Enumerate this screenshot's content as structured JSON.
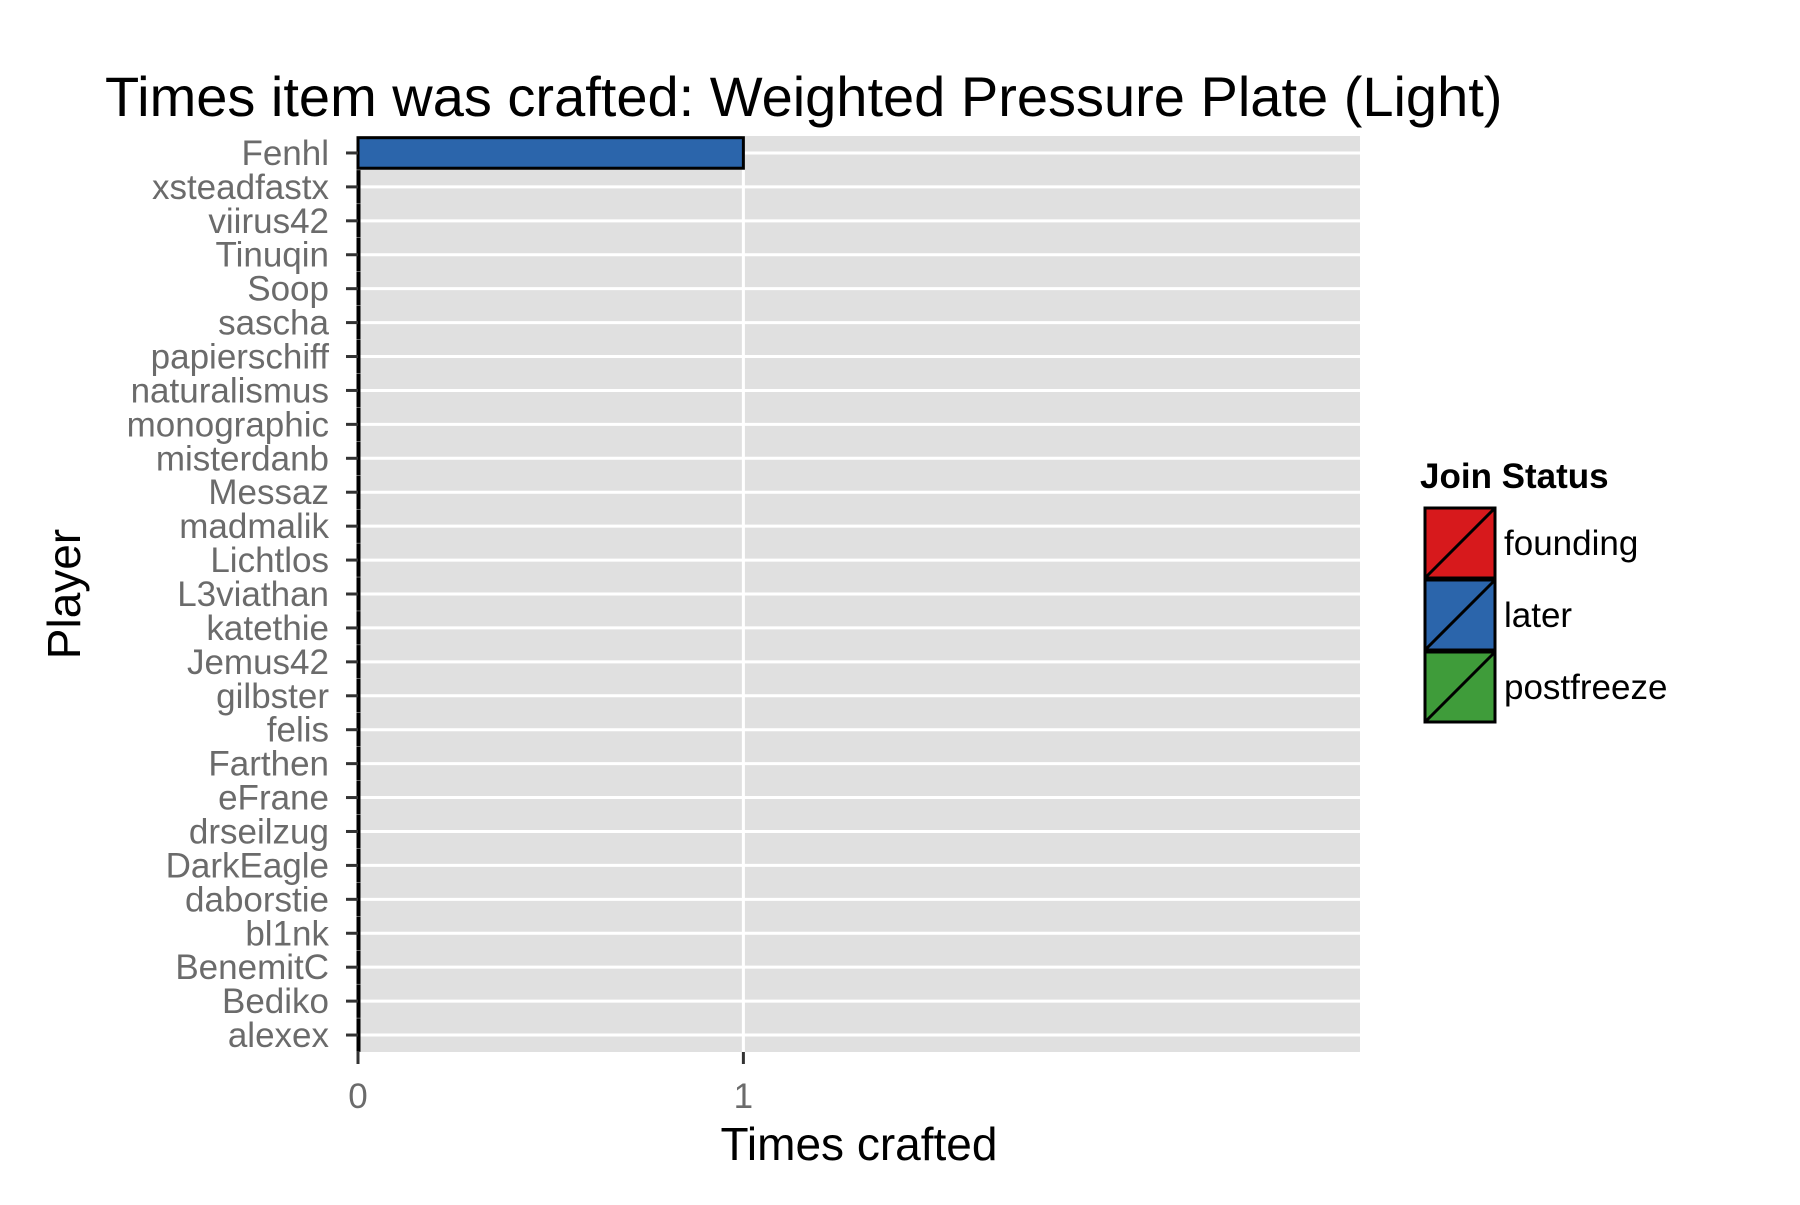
{
  "chart_data": {
    "type": "bar",
    "orientation": "horizontal",
    "title": "Times item was crafted: Weighted Pressure Plate (Light)",
    "xlabel": "Times crafted",
    "ylabel": "Player",
    "xlim": [
      0,
      2.6
    ],
    "x_ticks": [
      0,
      1
    ],
    "grid": true,
    "legend": {
      "title": "Join Status",
      "position": "right",
      "entries": [
        {
          "label": "founding",
          "color": "#d7191c"
        },
        {
          "label": "later",
          "color": "#2b65ab"
        },
        {
          "label": "postfreeze",
          "color": "#3f9c3a"
        }
      ]
    },
    "categories": [
      "Fenhl",
      "xsteadfastx",
      "viirus42",
      "Tinuqin",
      "Soop",
      "sascha",
      "papierschiff",
      "naturalismus",
      "monographic",
      "misterdanb",
      "Messaz",
      "madmalik",
      "Lichtlos",
      "L3viathan",
      "katethie",
      "Jemus42",
      "gilbster",
      "felis",
      "Farthen",
      "eFrane",
      "drseilzug",
      "DarkEagle",
      "daborstie",
      "bl1nk",
      "BenemitC",
      "Bediko",
      "alexex"
    ],
    "values": [
      1,
      0,
      0,
      0,
      0,
      0,
      0,
      0,
      0,
      0,
      0,
      0,
      0,
      0,
      0,
      0,
      0,
      0,
      0,
      0,
      0,
      0,
      0,
      0,
      0,
      0,
      0
    ],
    "bar_status": [
      "later",
      "",
      "",
      "",
      "",
      "",
      "",
      "",
      "",
      "",
      "",
      "",
      "",
      "",
      "",
      "",
      "",
      "",
      "",
      "",
      "",
      "",
      "",
      "",
      "",
      "",
      ""
    ]
  }
}
